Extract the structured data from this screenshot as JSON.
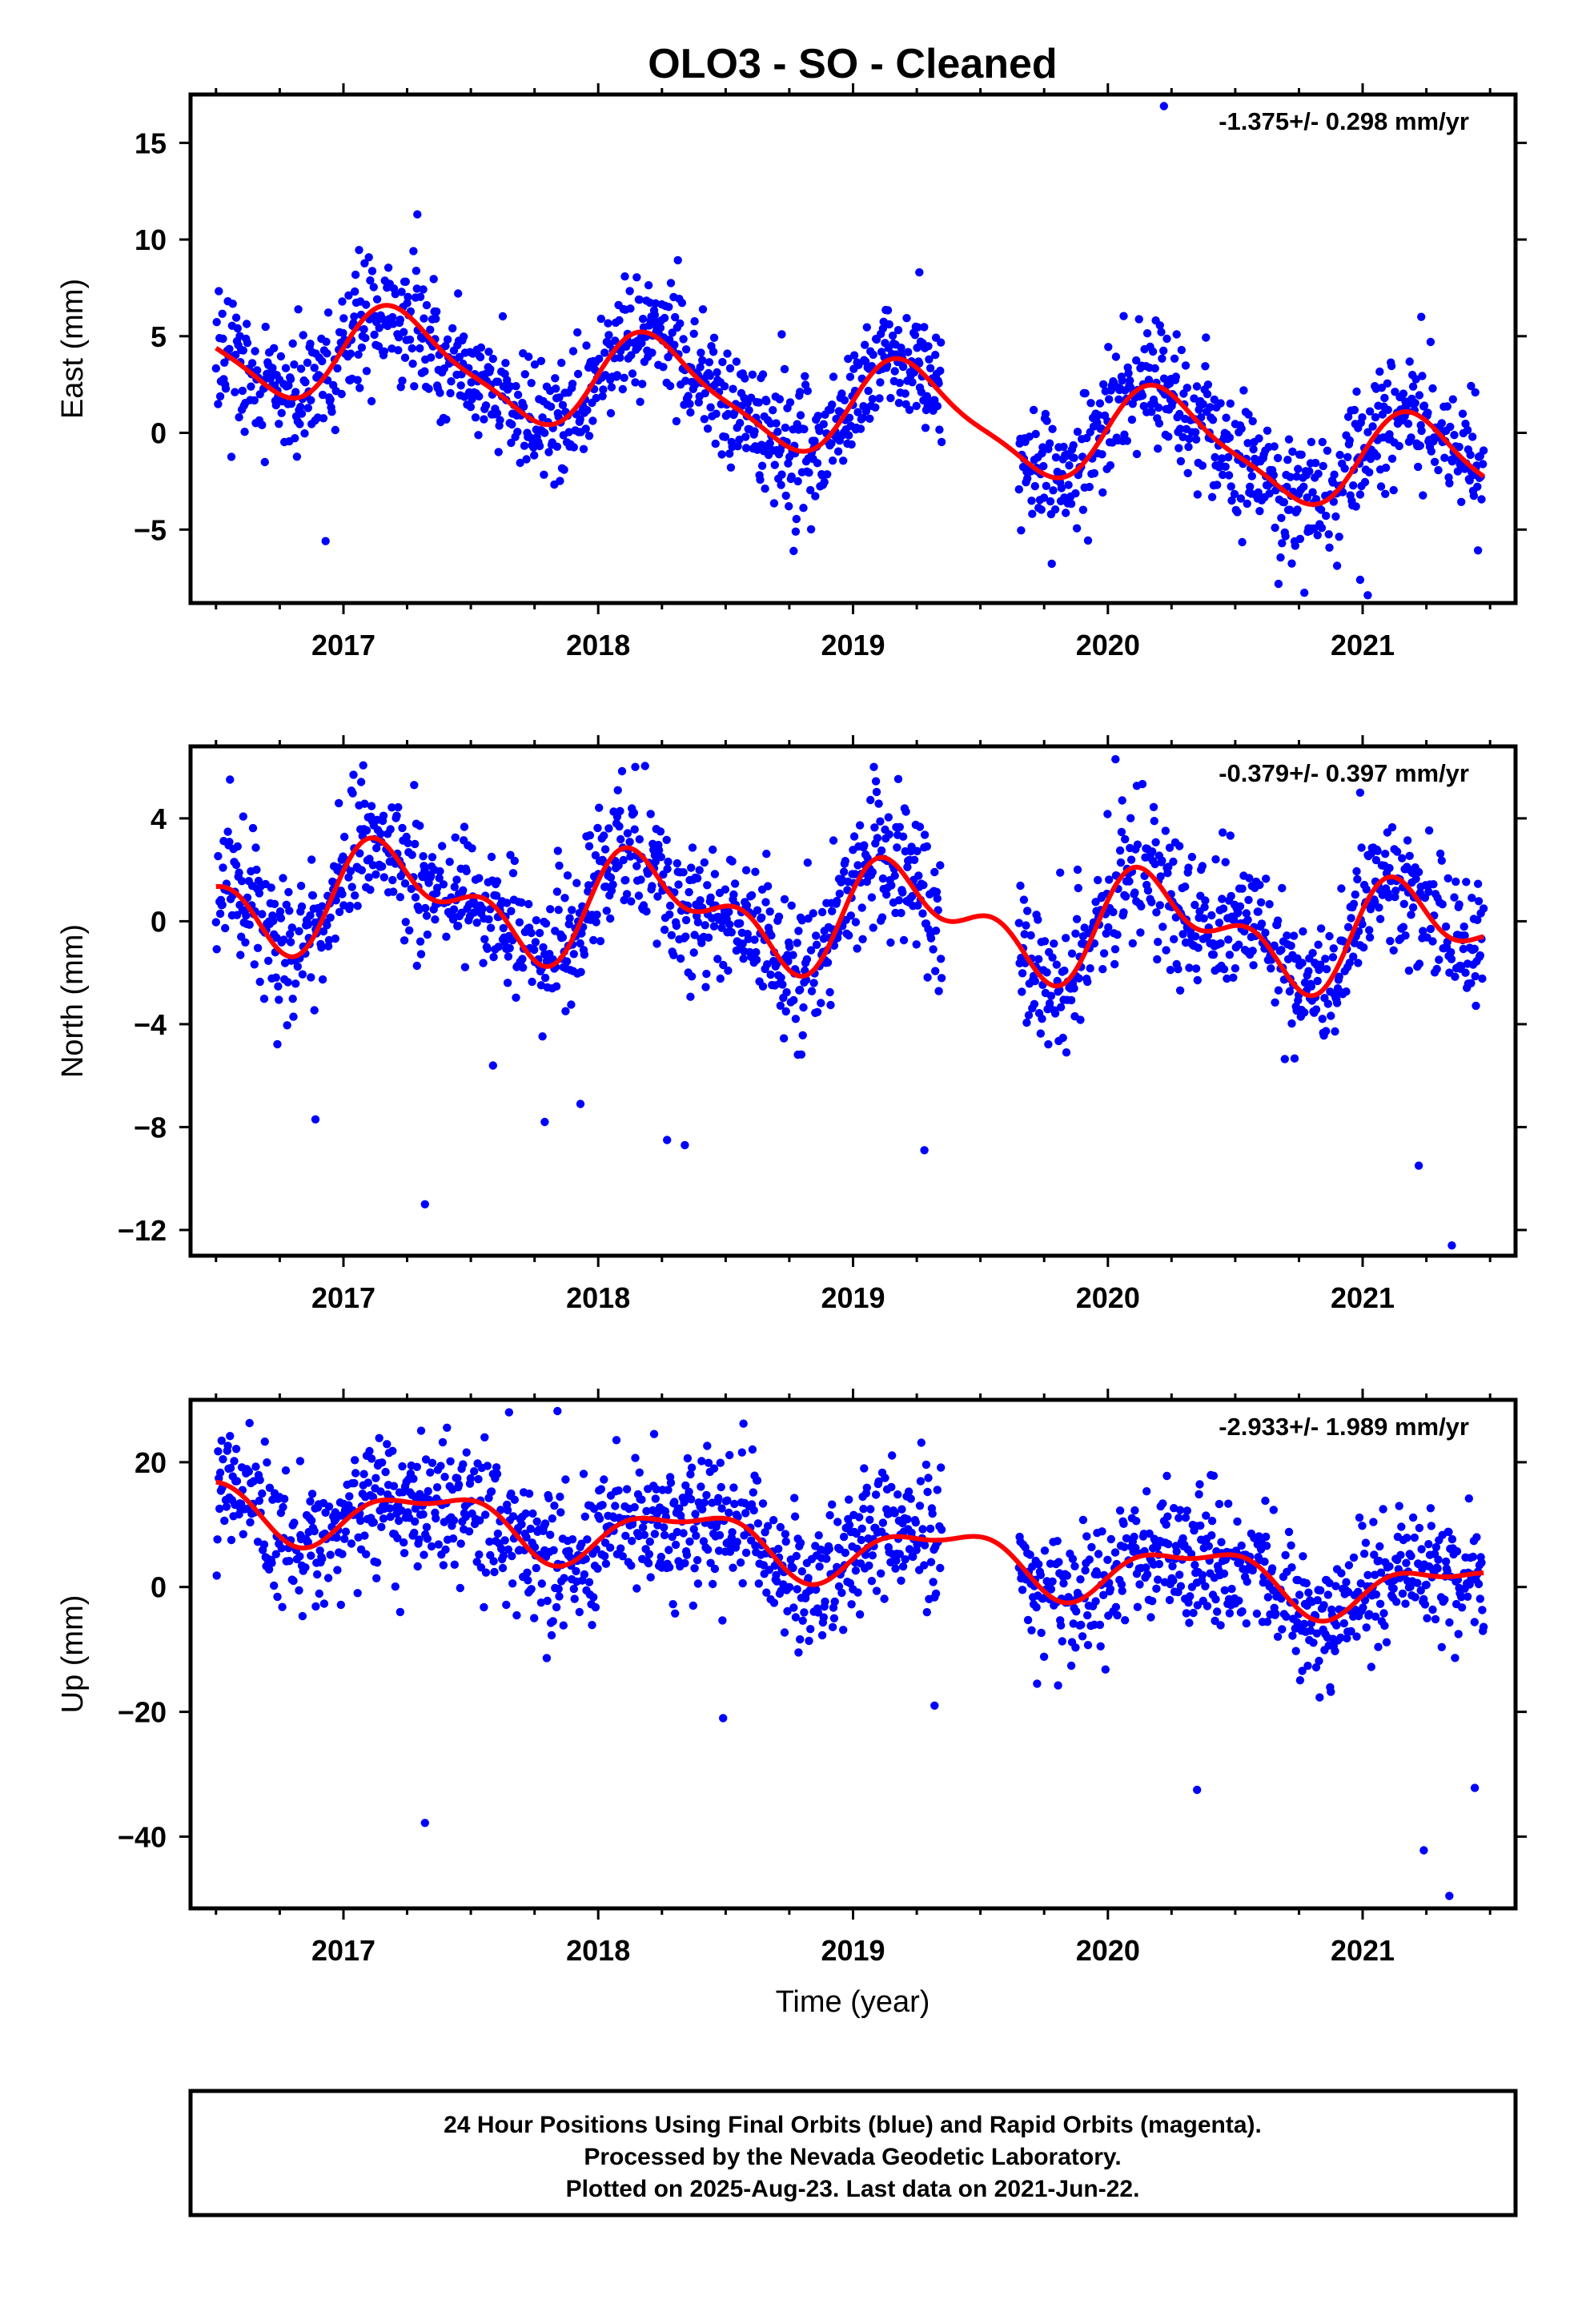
{
  "chart_data": {
    "type": "scatter",
    "title": "OLO3  - SO - Cleaned",
    "xlabel": "Time (year)",
    "xlim": [
      2016.4,
      2021.6
    ],
    "x_ticks": [
      2017,
      2018,
      2019,
      2020,
      2021
    ],
    "x_tick_labels": [
      "2017",
      "2018",
      "2019",
      "2020",
      "2021"
    ],
    "marker_color": "#0000ff",
    "model_color": "#ff0000",
    "data_start": 2016.5,
    "data_end": 2021.475,
    "gap": [
      2019.35,
      2019.65
    ],
    "panels": [
      {
        "name": "east",
        "ylabel": "East (mm)",
        "ylim": [
          -8.8,
          17.5
        ],
        "y_ticks": [
          15,
          10,
          5,
          0,
          -5
        ],
        "y_tick_labels": [
          "15",
          "10",
          "5",
          "0",
          "−5"
        ],
        "rate_text": "-1.375+/- 0.298 mm/yr",
        "model": {
          "intercept": 1.3,
          "trend": -1.375,
          "annual": [
            2.4,
            0.35
          ],
          "semiannual": [
            0.6,
            0.0
          ]
        },
        "scatter_sd": 1.6,
        "outliers": [
          [
            2016.93,
            -5.6
          ],
          [
            2017.29,
            11.3
          ],
          [
            2019.26,
            8.3
          ],
          [
            2020.22,
            16.9
          ],
          [
            2021.02,
            -8.4
          ],
          [
            2020.99,
            -7.6
          ],
          [
            2021.23,
            6.0
          ],
          [
            2018.72,
            5.1
          ]
        ]
      },
      {
        "name": "north",
        "ylabel": "North (mm)",
        "ylim": [
          -13.0,
          6.8
        ],
        "y_ticks": [
          4,
          0,
          -4,
          -8,
          -12
        ],
        "y_tick_labels": [
          "4",
          "0",
          "−4",
          "−8",
          "−12"
        ],
        "rate_text": "-0.379+/- 0.397 mm/yr",
        "model": {
          "intercept": 0.2,
          "trend": -0.379,
          "annual": [
            1.6,
            0.4
          ],
          "semiannual": [
            0.9,
            0.6
          ]
        },
        "scatter_sd": 1.3,
        "outliers": [
          [
            2017.32,
            -11.0
          ],
          [
            2016.89,
            -7.7
          ],
          [
            2017.93,
            -7.1
          ],
          [
            2018.27,
            -8.5
          ],
          [
            2018.34,
            -8.7
          ],
          [
            2019.28,
            -8.9
          ],
          [
            2020.03,
            6.3
          ],
          [
            2020.99,
            5.0
          ],
          [
            2021.22,
            -9.5
          ],
          [
            2021.35,
            -12.6
          ],
          [
            2017.79,
            -7.8
          ]
        ]
      },
      {
        "name": "up",
        "ylabel": "Up (mm)",
        "ylim": [
          -51.5,
          30.0
        ],
        "y_ticks": [
          20,
          0,
          -20,
          -40
        ],
        "y_tick_labels": [
          "20",
          "0",
          "−20",
          "−40"
        ],
        "rate_text": "-2.933+/- 1.989 mm/yr",
        "model": {
          "intercept": 6.0,
          "trend": -2.933,
          "annual": [
            3.5,
            -2.5
          ],
          "semiannual": [
            1.5,
            1.0
          ]
        },
        "scatter_sd": 5.5,
        "outliers": [
          [
            2017.32,
            -37.8
          ],
          [
            2017.65,
            28.0
          ],
          [
            2017.84,
            28.2
          ],
          [
            2021.34,
            -49.5
          ],
          [
            2021.24,
            -42.2
          ],
          [
            2018.49,
            -21.0
          ],
          [
            2019.32,
            -19.0
          ],
          [
            2020.35,
            -32.5
          ],
          [
            2021.44,
            -32.2
          ],
          [
            2016.83,
            20.2
          ]
        ]
      }
    ]
  },
  "footer": {
    "line1": "24 Hour Positions Using Final Orbits (blue) and Rapid Orbits (magenta).",
    "line2": "Processed by the Nevada Geodetic Laboratory.",
    "line3": "Plotted on 2025-Aug-23. Last data on 2021-Jun-22."
  }
}
